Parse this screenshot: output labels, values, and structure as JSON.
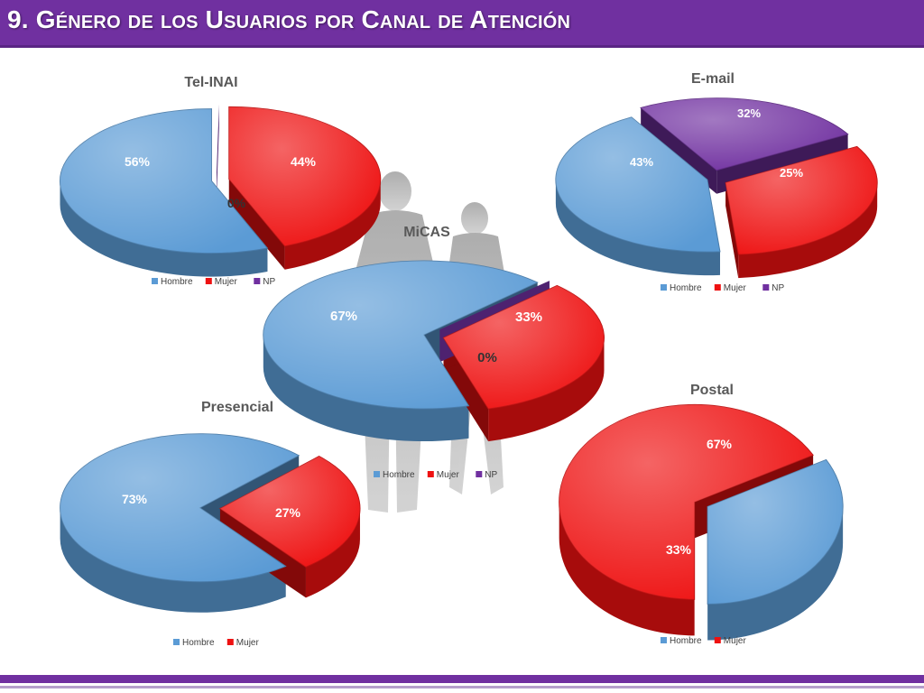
{
  "header": {
    "title": "9. Género de los Usuarios por Canal de Atención",
    "background_color": "#7030a0"
  },
  "palette": {
    "Hombre": "#5b9bd5",
    "Mujer": "#ee1111",
    "NP": "#7030a0"
  },
  "legend_labels": [
    "Hombre",
    "Mujer",
    "NP"
  ],
  "chart_data": [
    {
      "id": "tel-inai",
      "type": "pie",
      "title": "Tel-INAI",
      "slices": [
        {
          "label": "Hombre",
          "value": 56,
          "display": "56%"
        },
        {
          "label": "Mujer",
          "value": 44,
          "display": "44%"
        },
        {
          "label": "NP",
          "value": 0,
          "display": "0%"
        }
      ],
      "legend": [
        "Hombre",
        "Mujer",
        "NP"
      ],
      "legend_position": "bottom",
      "exploded": true
    },
    {
      "id": "email",
      "type": "pie",
      "title": "E-mail",
      "slices": [
        {
          "label": "Hombre",
          "value": 43,
          "display": "43%"
        },
        {
          "label": "Mujer",
          "value": 32,
          "display": "32%"
        },
        {
          "label": "NP",
          "value": 25,
          "display": "25%"
        }
      ],
      "legend": [
        "Hombre",
        "Mujer",
        "NP"
      ],
      "legend_position": "bottom",
      "exploded": true
    },
    {
      "id": "micas",
      "type": "pie",
      "title": "MiCAS",
      "slices": [
        {
          "label": "Hombre",
          "value": 67,
          "display": "67%"
        },
        {
          "label": "Mujer",
          "value": 33,
          "display": "33%"
        },
        {
          "label": "NP",
          "value": 0,
          "display": "0%"
        }
      ],
      "legend": [
        "Hombre",
        "Mujer",
        "NP"
      ],
      "legend_position": "bottom",
      "exploded": true
    },
    {
      "id": "presencial",
      "type": "pie",
      "title": "Presencial",
      "slices": [
        {
          "label": "Hombre",
          "value": 73,
          "display": "73%"
        },
        {
          "label": "Mujer",
          "value": 27,
          "display": "27%"
        }
      ],
      "legend": [
        "Hombre",
        "Mujer"
      ],
      "legend_position": "bottom",
      "exploded": true
    },
    {
      "id": "postal",
      "type": "pie",
      "title": "Postal",
      "slices": [
        {
          "label": "Hombre",
          "value": 33,
          "display": "33%"
        },
        {
          "label": "Mujer",
          "value": 67,
          "display": "67%"
        }
      ],
      "legend": [
        "Hombre",
        "Mujer"
      ],
      "legend_position": "bottom",
      "exploded": true
    }
  ]
}
